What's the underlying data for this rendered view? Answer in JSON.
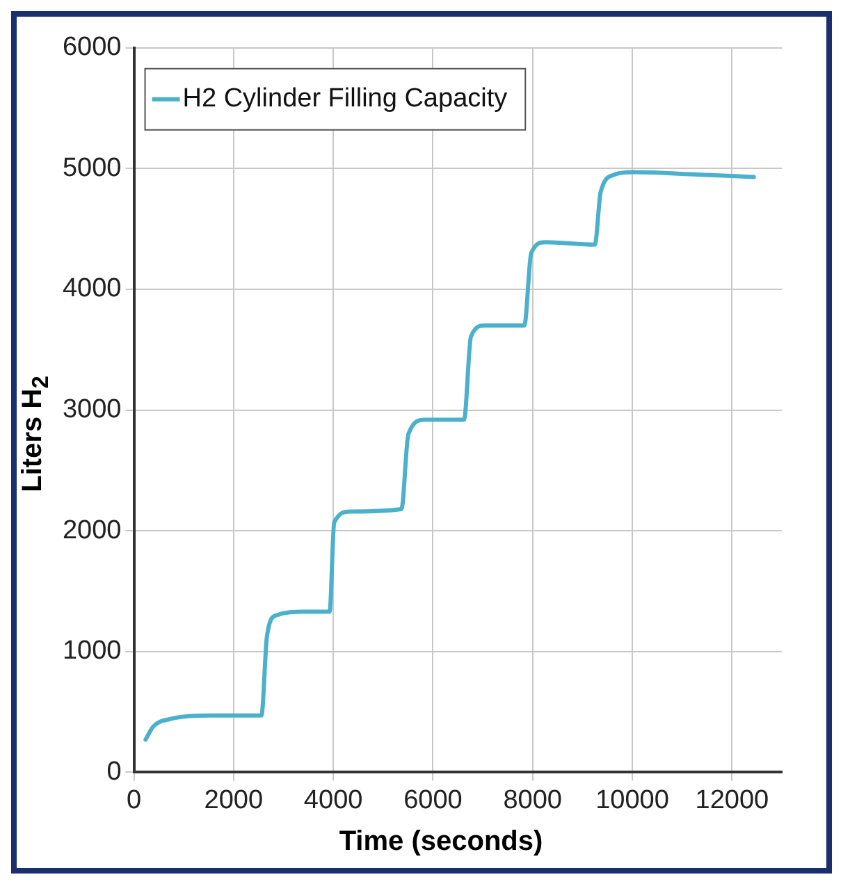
{
  "chart_data": {
    "type": "line",
    "xlabel": "Time (seconds)",
    "ylabel": "Liters H$_{2}$",
    "xlim": [
      0,
      13000
    ],
    "xticks": [
      0,
      2000,
      4000,
      6000,
      8000,
      10000,
      12000
    ],
    "ylim": [
      0,
      6000
    ],
    "yticks": [
      0,
      1000,
      2000,
      3000,
      4000,
      5000,
      6000
    ],
    "grid": true,
    "legend": "top left",
    "marker": "none",
    "line_style": "solid",
    "series": [
      {
        "name": "H2 Cylinder Filling Capacity",
        "color": "#4bb0cc",
        "x": [
          233,
          390,
          716,
          1553,
          2558,
          2670,
          2856,
          3414,
          3926,
          4019,
          4344,
          5367,
          5507,
          5833,
          6623,
          6763,
          7042,
          7833,
          7972,
          8251,
          9247,
          9367,
          9647,
          10019,
          11321,
          12437
        ],
        "values": [
          270,
          380,
          440,
          470,
          470,
          1130,
          1300,
          1330,
          1330,
          2070,
          2160,
          2180,
          2800,
          2920,
          2920,
          3610,
          3700,
          3700,
          4300,
          4390,
          4370,
          4810,
          4950,
          4970,
          4950,
          4930
        ]
      }
    ]
  }
}
